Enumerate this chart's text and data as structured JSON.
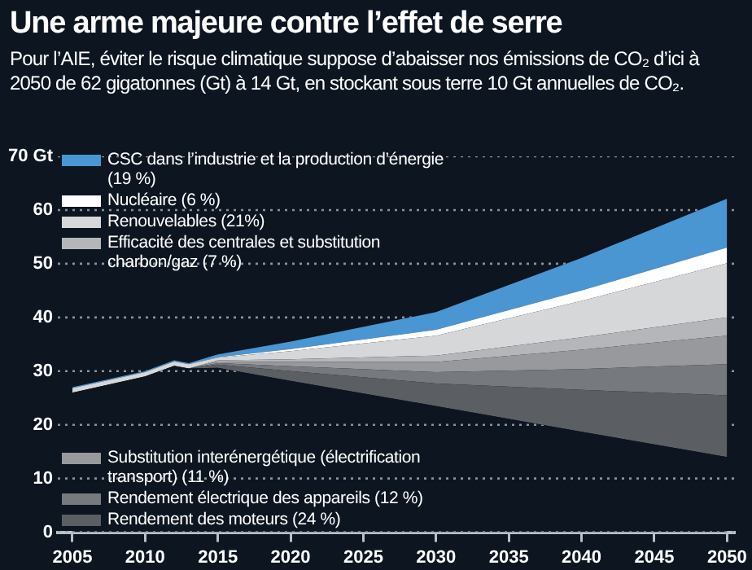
{
  "chart_data": {
    "type": "area",
    "title": "Une arme majeure contre l’effet de serre",
    "subtitle": "Pour l’AIE, éviter le risque climatique suppose d’abaisser nos émissions de CO₂ d’ici à 2050 de 62 gigatonnes (Gt) à 14 Gt, en stockant sous terre 10 Gt annuelles de CO₂.",
    "x": [
      2005,
      2010,
      2012,
      2013,
      2015,
      2020,
      2030,
      2040,
      2050
    ],
    "stacked": true,
    "grid": "y",
    "legend": "left",
    "xlim": [
      2004,
      2050.5
    ],
    "xticks": [
      2005,
      2010,
      2015,
      2020,
      2025,
      2030,
      2035,
      2040,
      2045,
      2050
    ],
    "ylim": [
      0,
      70
    ],
    "yticks": [
      0,
      10,
      20,
      30,
      40,
      50,
      {
        "value": 70,
        "label": "70 Gt"
      },
      60
    ],
    "series": [
      {
        "color": "#0c1520",
        "values": [
          26,
          29,
          31,
          30.5,
          30.6,
          28.2,
          23.5,
          18.7,
          14
        ]
      },
      {
        "name": "Rendement des moteurs (24 %)",
        "color": "#5b5e63",
        "values": [
          0,
          0,
          0,
          0,
          0.6,
          1.8,
          4.2,
          7.8,
          11.5
        ]
      },
      {
        "name": "Rendement électrique des appareils (12 %)",
        "color": "#76797d",
        "values": [
          0,
          0,
          0,
          0,
          0.3,
          0.9,
          2.1,
          3.9,
          5.8
        ]
      },
      {
        "name": "Substitution interénergétique (électrification transport) (11 %)",
        "color": "#97999d",
        "values": [
          0,
          0,
          0,
          0,
          0.3,
          0.8,
          1.9,
          3.6,
          5.3
        ]
      },
      {
        "name": "Efficacité des centrales et substitution charbon/gaz (7 %)",
        "color": "#b4b6b9",
        "values": [
          0,
          0,
          0,
          0,
          0.2,
          0.5,
          1.2,
          2.3,
          3.4
        ]
      },
      {
        "name": "Renouvelables (21%)",
        "color": "#d6d7d9",
        "values": [
          0.8,
          0.8,
          0.8,
          0.8,
          0.5,
          1.5,
          3.7,
          6.8,
          10.1
        ]
      },
      {
        "name": "Nucléaire (6 %)",
        "color": "#ffffff",
        "values": [
          0,
          0,
          0,
          0,
          0.1,
          0.4,
          1.1,
          1.9,
          2.9
        ]
      },
      {
        "name": "CSC dans l’industrie et la production d’énergie (19 %)",
        "color": "#4a96d2",
        "values": [
          0.2,
          0.2,
          0.2,
          0.2,
          0.5,
          1.4,
          3.3,
          6.1,
          9.1
        ]
      }
    ]
  }
}
